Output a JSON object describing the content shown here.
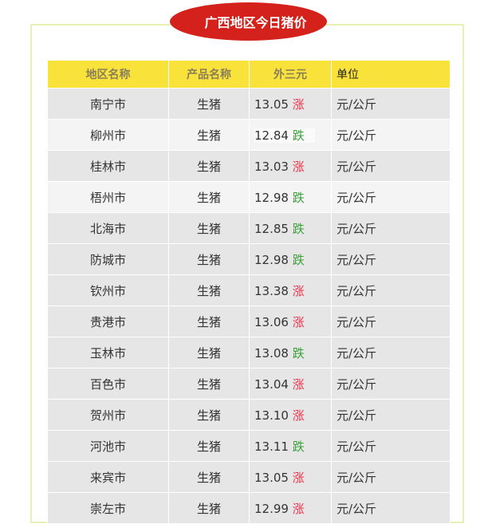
{
  "title": "广西地区今日猪价",
  "headers": [
    "地区名称",
    "产品名称",
    "外三元",
    "单位"
  ],
  "colors": {
    "badge": "#d4211c",
    "header": "#f9e33b",
    "up": "#f2334b",
    "down": "#3aa03a"
  },
  "rows": [
    {
      "region": "南宁市",
      "product": "生猪",
      "price": "13.05",
      "trend": "涨",
      "unit": "元/公斤"
    },
    {
      "region": "柳州市",
      "product": "生猪",
      "price": "12.84",
      "trend": "跌",
      "unit": "元/公斤"
    },
    {
      "region": "桂林市",
      "product": "生猪",
      "price": "13.03",
      "trend": "涨",
      "unit": "元/公斤"
    },
    {
      "region": "梧州市",
      "product": "生猪",
      "price": "12.98",
      "trend": "跌",
      "unit": "元/公斤"
    },
    {
      "region": "北海市",
      "product": "生猪",
      "price": "12.85",
      "trend": "跌",
      "unit": "元/公斤"
    },
    {
      "region": "防城市",
      "product": "生猪",
      "price": "12.98",
      "trend": "跌",
      "unit": "元/公斤"
    },
    {
      "region": "钦州市",
      "product": "生猪",
      "price": "13.38",
      "trend": "涨",
      "unit": "元/公斤"
    },
    {
      "region": "贵港市",
      "product": "生猪",
      "price": "13.06",
      "trend": "涨",
      "unit": "元/公斤"
    },
    {
      "region": "玉林市",
      "product": "生猪",
      "price": "13.08",
      "trend": "跌",
      "unit": "元/公斤"
    },
    {
      "region": "百色市",
      "product": "生猪",
      "price": "13.04",
      "trend": "涨",
      "unit": "元/公斤"
    },
    {
      "region": "贺州市",
      "product": "生猪",
      "price": "13.10",
      "trend": "涨",
      "unit": "元/公斤"
    },
    {
      "region": "河池市",
      "product": "生猪",
      "price": "13.11",
      "trend": "跌",
      "unit": "元/公斤"
    },
    {
      "region": "来宾市",
      "product": "生猪",
      "price": "13.05",
      "trend": "涨",
      "unit": "元/公斤"
    },
    {
      "region": "崇左市",
      "product": "生猪",
      "price": "12.99",
      "trend": "涨",
      "unit": "元/公斤"
    }
  ]
}
